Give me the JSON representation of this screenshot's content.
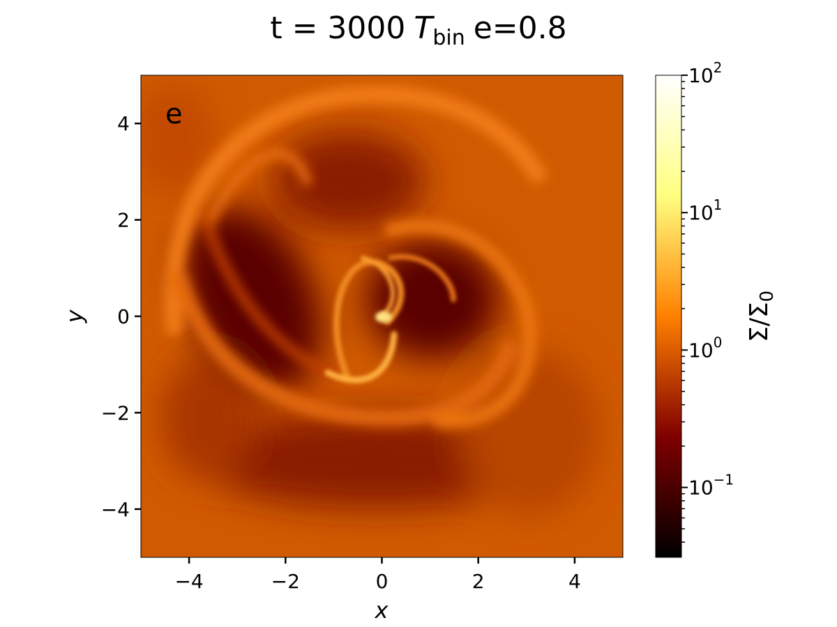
{
  "chart_data": {
    "type": "heatmap",
    "title_parts": [
      "t = 3000",
      "T",
      "bin",
      "e=0.8"
    ],
    "panel_label": "e",
    "xlabel": "x",
    "ylabel": "y",
    "xlim": [
      -5,
      5
    ],
    "ylim": [
      -5,
      5
    ],
    "xticks": [
      {
        "value": -4,
        "label": "−4"
      },
      {
        "value": -2,
        "label": "−2"
      },
      0,
      2,
      4
    ],
    "yticks": [
      {
        "value": -4,
        "label": "−4"
      },
      {
        "value": -2,
        "label": "−2"
      },
      0,
      2,
      4
    ],
    "colorbar": {
      "label": "Σ/Σ",
      "label_subscript": "0",
      "cmap": "afmhot",
      "log_scale": true,
      "clim": [
        0.031,
        100
      ],
      "ticks": [
        {
          "value": 0.1,
          "label": "10",
          "exponent": "−1"
        },
        {
          "value": 1,
          "label": "10",
          "exponent": "0"
        },
        {
          "value": 10,
          "label": "10",
          "exponent": "1"
        },
        {
          "value": 100,
          "label": "10",
          "exponent": "2"
        }
      ],
      "minor_ticks": [
        0.04,
        0.05,
        0.06,
        0.07,
        0.08,
        0.09,
        0.2,
        0.3,
        0.4,
        0.5,
        0.6,
        0.7,
        0.8,
        0.9,
        2,
        3,
        4,
        5,
        6,
        7,
        8,
        9,
        20,
        30,
        40,
        50,
        60,
        70,
        80,
        90
      ]
    }
  }
}
